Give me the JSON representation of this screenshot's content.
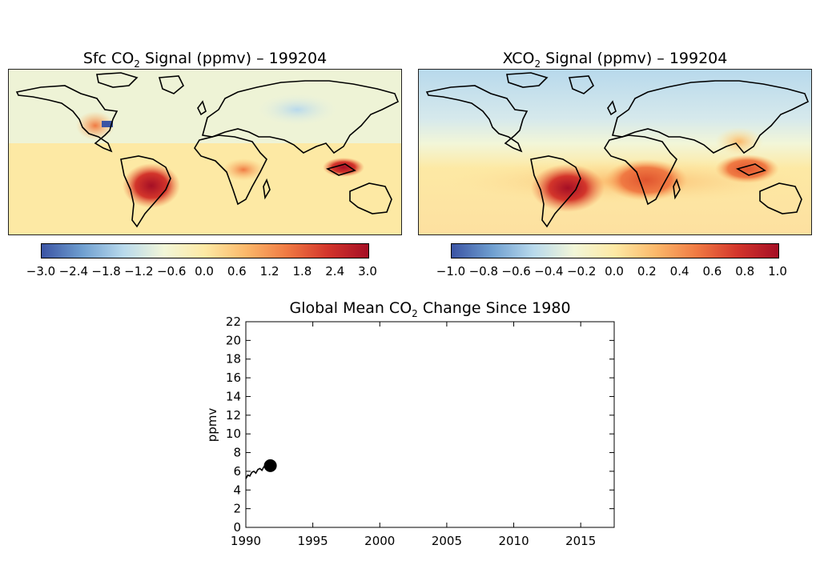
{
  "panels": {
    "left": {
      "title_prefix": "Sfc CO",
      "title_sub": "2",
      "title_suffix": " Signal (ppmv) – 199204",
      "colorbar_ticks": [
        "−3.0",
        "−2.4",
        "−1.8",
        "−1.2",
        "−0.6",
        "0.0",
        "0.6",
        "1.2",
        "1.8",
        "2.4",
        "3.0"
      ],
      "colorbar_range": [
        -3.0,
        3.0
      ]
    },
    "right": {
      "title_prefix": "XCO",
      "title_sub": "2",
      "title_suffix": " Signal (ppmv) – 199204",
      "colorbar_ticks": [
        "−1.0",
        "−0.8",
        "−0.6",
        "−0.4",
        "−0.2",
        "0.0",
        "0.2",
        "0.4",
        "0.6",
        "0.8",
        "1.0"
      ],
      "colorbar_range": [
        -1.0,
        1.0
      ]
    }
  },
  "colormap": [
    "#3b54a4",
    "#6f9fd0",
    "#b8d9ec",
    "#f2f6d8",
    "#fde9a4",
    "#fbb86a",
    "#f07a43",
    "#d3352b",
    "#a50f25"
  ],
  "ocean_colors": {
    "left": "#f6f3cf",
    "right": "#fbe8a8"
  },
  "chart_data": {
    "type": "line",
    "title_prefix": "Global Mean CO",
    "title_sub": "2",
    "title_suffix": " Change Since 1980",
    "ylabel": "ppmv",
    "xlabel": "",
    "xlim": [
      1990,
      2017.5
    ],
    "ylim": [
      0,
      22
    ],
    "xticks": [
      "1990",
      "1995",
      "2000",
      "2005",
      "2010",
      "2015"
    ],
    "yticks": [
      "0",
      "2",
      "4",
      "6",
      "8",
      "10",
      "12",
      "14",
      "16",
      "18",
      "20",
      "22"
    ],
    "series": [
      {
        "x": [
          1990.0,
          1990.15,
          1990.3,
          1990.45,
          1990.6,
          1990.75,
          1990.9,
          1991.05,
          1991.2,
          1991.35,
          1991.5,
          1991.65,
          1991.75,
          1991.83
        ],
        "y": [
          5.2,
          5.6,
          5.5,
          5.9,
          6.0,
          5.8,
          6.2,
          6.3,
          6.1,
          6.5,
          6.6,
          6.4,
          6.6,
          6.6
        ]
      }
    ],
    "current_point": {
      "x": 1991.83,
      "y": 6.6
    }
  }
}
